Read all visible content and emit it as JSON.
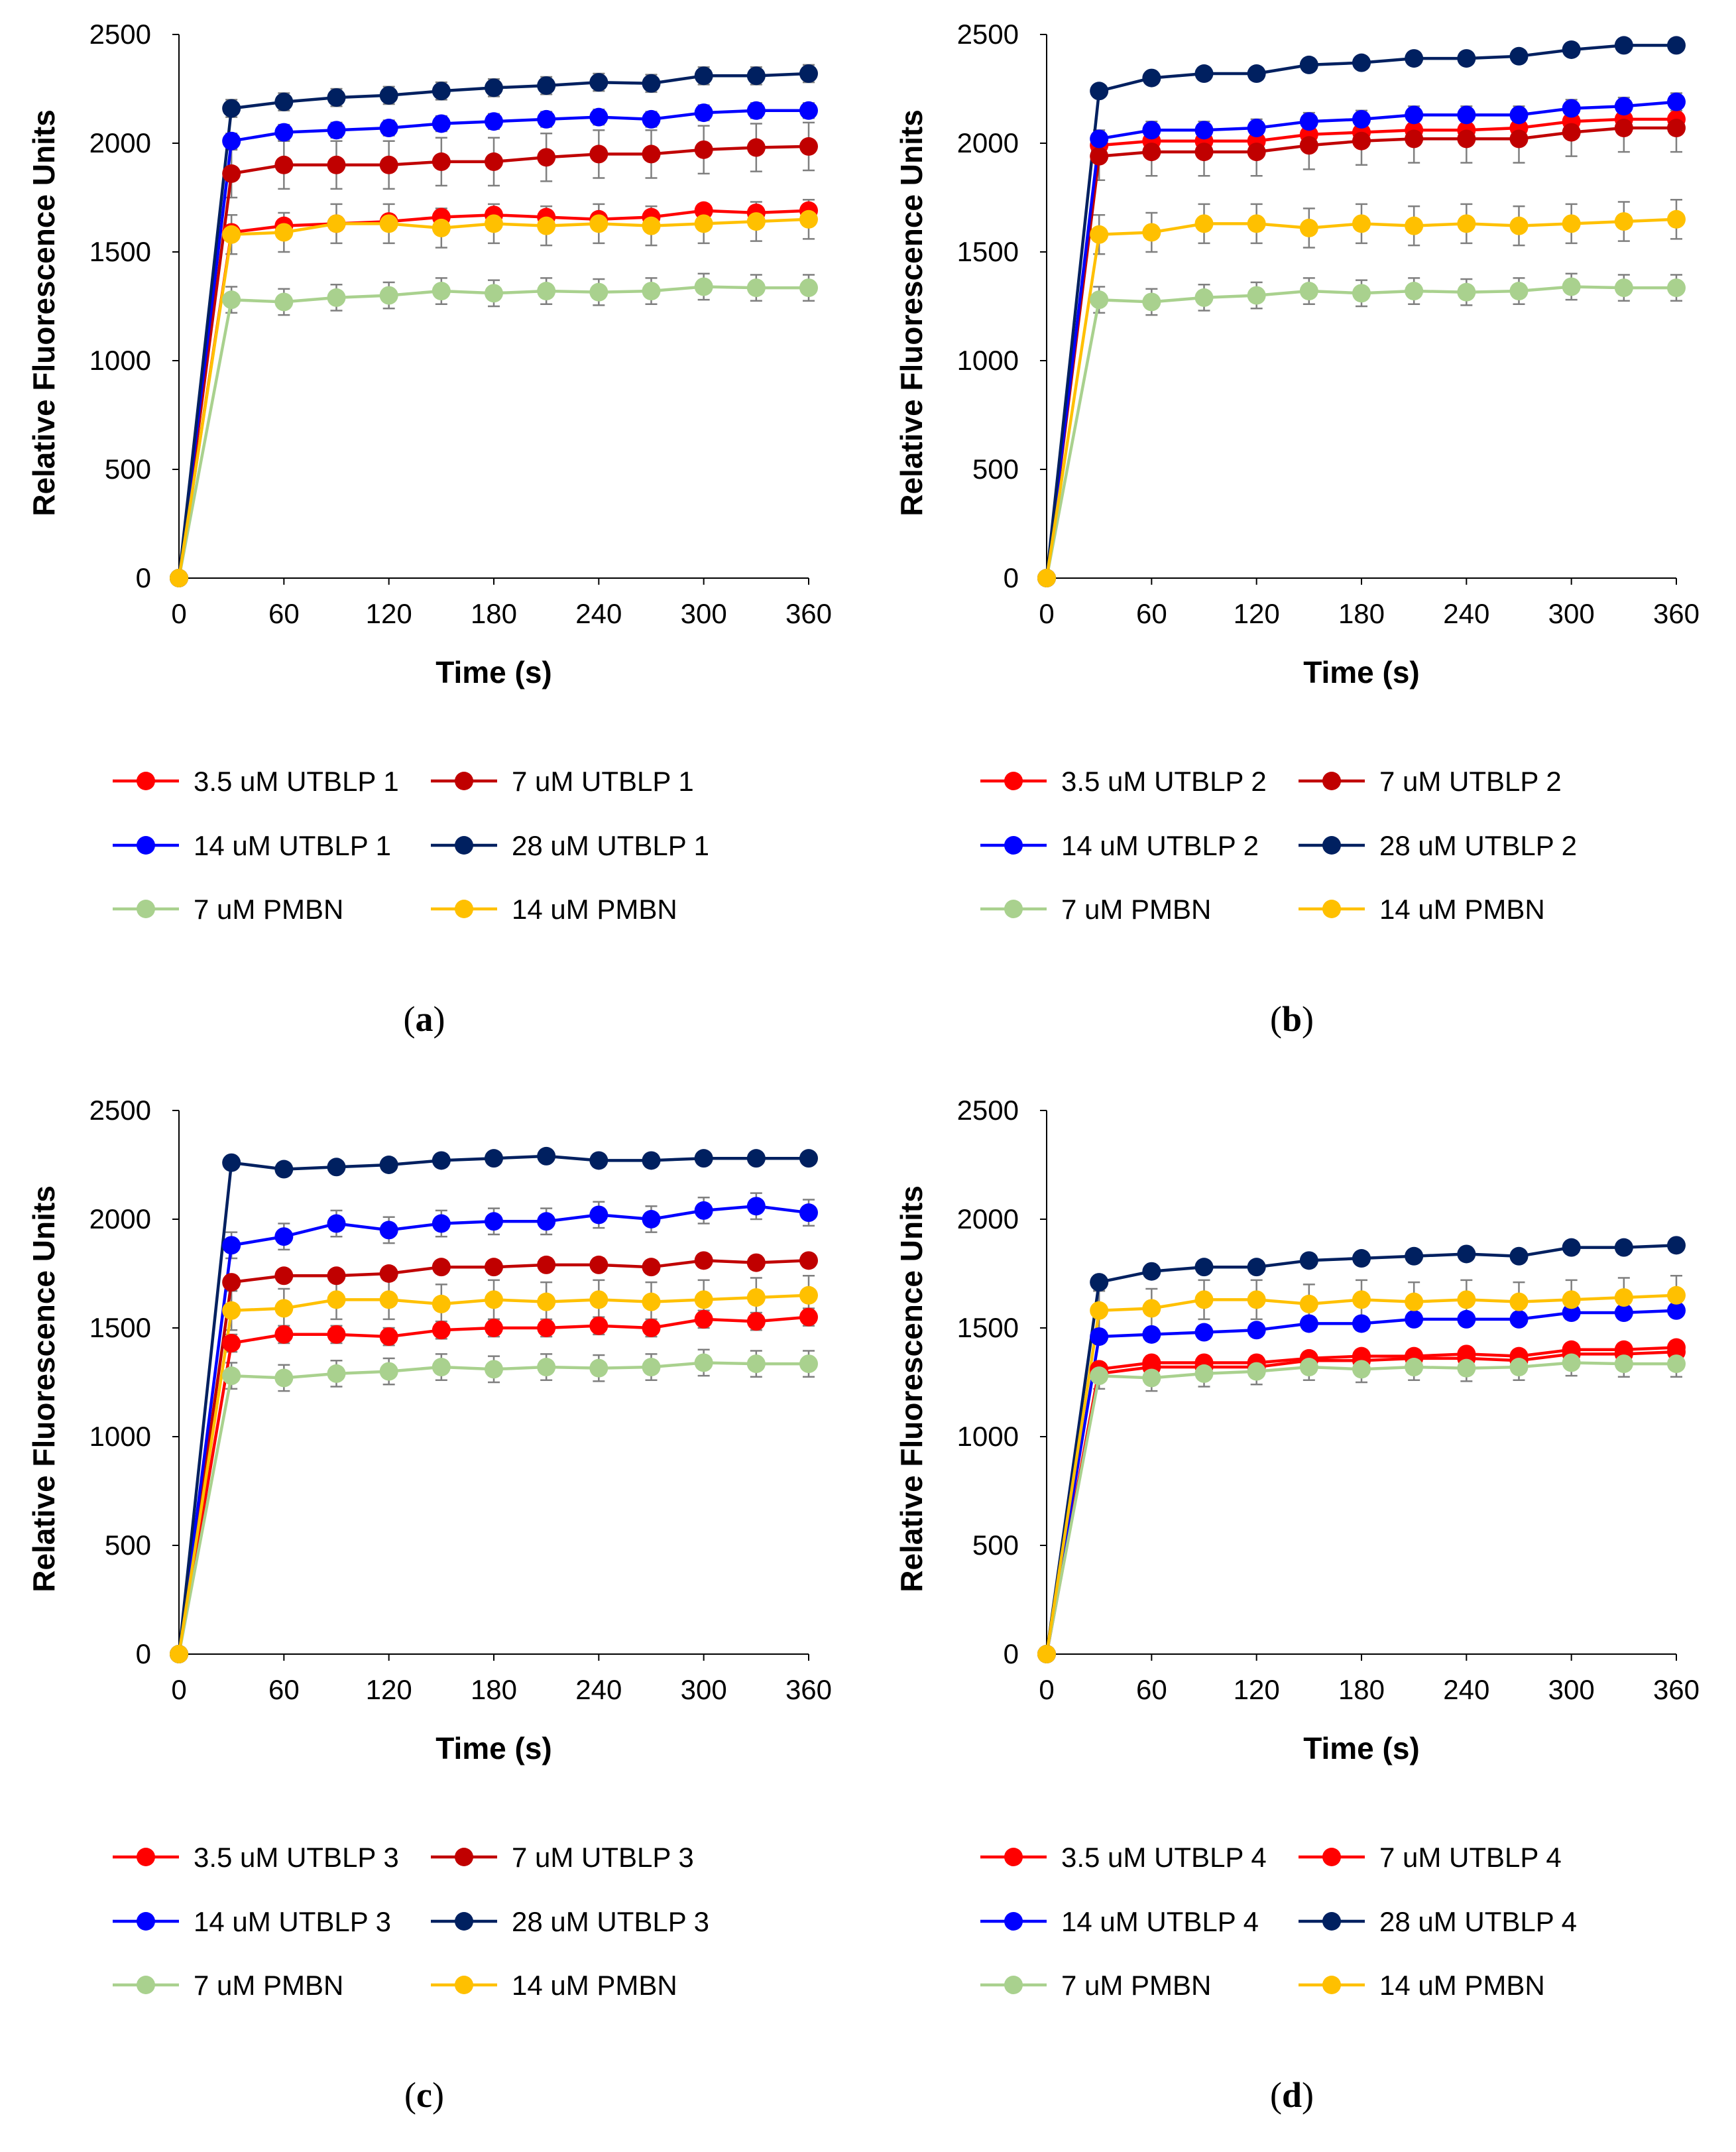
{
  "chart_data": [
    {
      "panel_label": "a",
      "type": "line",
      "xlabel": "Time (s)",
      "ylabel": "Relative Fluorescence Units",
      "xlim": [
        0,
        360
      ],
      "ylim": [
        0,
        2500
      ],
      "xticks": [
        0,
        60,
        120,
        180,
        240,
        300,
        360
      ],
      "yticks": [
        0,
        500,
        1000,
        1500,
        2000,
        2500
      ],
      "x": [
        0,
        30,
        60,
        90,
        120,
        150,
        180,
        210,
        240,
        270,
        300,
        330,
        360
      ],
      "series": [
        {
          "name": "3.5 uM UTBLP 1",
          "color": "#ff0000",
          "values": [
            0,
            1590,
            1620,
            1630,
            1640,
            1660,
            1670,
            1660,
            1650,
            1660,
            1690,
            1680,
            1690
          ],
          "err": 30
        },
        {
          "name": "7 uM UTBLP 1",
          "color": "#c00000",
          "values": [
            0,
            1860,
            1900,
            1900,
            1900,
            1915,
            1915,
            1935,
            1950,
            1950,
            1970,
            1980,
            1985
          ],
          "err": 110
        },
        {
          "name": "14 uM UTBLP 1",
          "color": "#0000ff",
          "values": [
            0,
            2010,
            2050,
            2060,
            2070,
            2090,
            2100,
            2110,
            2120,
            2110,
            2140,
            2150,
            2150
          ],
          "err": 35
        },
        {
          "name": "28 uM UTBLP 1",
          "color": "#002060",
          "values": [
            0,
            2160,
            2190,
            2210,
            2220,
            2240,
            2255,
            2265,
            2280,
            2275,
            2310,
            2310,
            2320
          ],
          "err": 40
        },
        {
          "name": "7 uM PMBN",
          "color": "#a9d18e",
          "values": [
            0,
            1280,
            1270,
            1290,
            1300,
            1320,
            1310,
            1320,
            1315,
            1320,
            1340,
            1335,
            1335
          ],
          "err": 60
        },
        {
          "name": "14 uM PMBN",
          "color": "#ffc000",
          "values": [
            0,
            1580,
            1590,
            1630,
            1630,
            1610,
            1630,
            1620,
            1630,
            1620,
            1630,
            1640,
            1650
          ],
          "err": 90
        }
      ]
    },
    {
      "panel_label": "b",
      "type": "line",
      "xlabel": "Time (s)",
      "ylabel": "Relative Fluorescence Units",
      "xlim": [
        0,
        360
      ],
      "ylim": [
        0,
        2500
      ],
      "xticks": [
        0,
        60,
        120,
        180,
        240,
        300,
        360
      ],
      "yticks": [
        0,
        500,
        1000,
        1500,
        2000,
        2500
      ],
      "x": [
        0,
        30,
        60,
        90,
        120,
        150,
        180,
        210,
        240,
        270,
        300,
        330,
        360
      ],
      "series": [
        {
          "name": "3.5 uM UTBLP 2",
          "color": "#ff0000",
          "values": [
            0,
            1990,
            2010,
            2010,
            2010,
            2040,
            2050,
            2060,
            2060,
            2070,
            2100,
            2110,
            2110
          ],
          "err": 40
        },
        {
          "name": "7 uM UTBLP 2",
          "color": "#c00000",
          "values": [
            0,
            1940,
            1960,
            1960,
            1960,
            1990,
            2010,
            2020,
            2020,
            2020,
            2050,
            2070,
            2070
          ],
          "err": 110
        },
        {
          "name": "14 uM UTBLP 2",
          "color": "#0000ff",
          "values": [
            0,
            2020,
            2060,
            2060,
            2070,
            2100,
            2110,
            2130,
            2130,
            2130,
            2160,
            2170,
            2190
          ],
          "err": 40
        },
        {
          "name": "28 uM UTBLP 2",
          "color": "#002060",
          "values": [
            0,
            2240,
            2300,
            2320,
            2320,
            2360,
            2370,
            2390,
            2390,
            2400,
            2430,
            2450,
            2450
          ],
          "err": 25
        },
        {
          "name": "7 uM PMBN",
          "color": "#a9d18e",
          "values": [
            0,
            1280,
            1270,
            1290,
            1300,
            1320,
            1310,
            1320,
            1315,
            1320,
            1340,
            1335,
            1335
          ],
          "err": 60
        },
        {
          "name": "14 uM PMBN",
          "color": "#ffc000",
          "values": [
            0,
            1580,
            1590,
            1630,
            1630,
            1610,
            1630,
            1620,
            1630,
            1620,
            1630,
            1640,
            1650
          ],
          "err": 90
        }
      ]
    },
    {
      "panel_label": "c",
      "type": "line",
      "xlabel": "Time (s)",
      "ylabel": "Relative Fluorescence Units",
      "xlim": [
        0,
        360
      ],
      "ylim": [
        0,
        2500
      ],
      "xticks": [
        0,
        60,
        120,
        180,
        240,
        300,
        360
      ],
      "yticks": [
        0,
        500,
        1000,
        1500,
        2000,
        2500
      ],
      "x": [
        0,
        30,
        60,
        90,
        120,
        150,
        180,
        210,
        240,
        270,
        300,
        330,
        360
      ],
      "series": [
        {
          "name": "3.5 uM UTBLP 3",
          "color": "#ff0000",
          "values": [
            0,
            1430,
            1470,
            1470,
            1460,
            1490,
            1500,
            1500,
            1510,
            1500,
            1540,
            1530,
            1550
          ],
          "err": 40
        },
        {
          "name": "7 uM UTBLP 3",
          "color": "#c00000",
          "values": [
            0,
            1710,
            1740,
            1740,
            1750,
            1780,
            1780,
            1790,
            1790,
            1780,
            1810,
            1800,
            1810
          ],
          "err": 30
        },
        {
          "name": "14 uM UTBLP 3",
          "color": "#0000ff",
          "values": [
            0,
            1880,
            1920,
            1980,
            1950,
            1980,
            1990,
            1990,
            2020,
            2000,
            2040,
            2060,
            2030
          ],
          "err": 60
        },
        {
          "name": "28 uM UTBLP 3",
          "color": "#002060",
          "values": [
            0,
            2260,
            2230,
            2240,
            2250,
            2270,
            2280,
            2290,
            2270,
            2270,
            2280,
            2280,
            2280
          ],
          "err": 20
        },
        {
          "name": "7 uM PMBN",
          "color": "#a9d18e",
          "values": [
            0,
            1280,
            1270,
            1290,
            1300,
            1320,
            1310,
            1320,
            1315,
            1320,
            1340,
            1335,
            1335
          ],
          "err": 60
        },
        {
          "name": "14 uM PMBN",
          "color": "#ffc000",
          "values": [
            0,
            1580,
            1590,
            1630,
            1630,
            1610,
            1630,
            1620,
            1630,
            1620,
            1630,
            1640,
            1650
          ],
          "err": 90
        }
      ]
    },
    {
      "panel_label": "d",
      "type": "line",
      "xlabel": "Time (s)",
      "ylabel": "Relative Fluorescence Units",
      "xlim": [
        0,
        360
      ],
      "ylim": [
        0,
        2500
      ],
      "xticks": [
        0,
        60,
        120,
        180,
        240,
        300,
        360
      ],
      "yticks": [
        0,
        500,
        1000,
        1500,
        2000,
        2500
      ],
      "x": [
        0,
        30,
        60,
        90,
        120,
        150,
        180,
        210,
        240,
        270,
        300,
        330,
        360
      ],
      "series": [
        {
          "name": "3.5 uM UTBLP 4",
          "color": "#ff0000",
          "values": [
            0,
            1310,
            1340,
            1340,
            1340,
            1360,
            1370,
            1370,
            1380,
            1370,
            1400,
            1400,
            1410
          ],
          "err": 30
        },
        {
          "name": "7 uM UTBLP 4",
          "color": "#ff0000",
          "values": [
            0,
            1290,
            1320,
            1320,
            1320,
            1350,
            1350,
            1360,
            1360,
            1350,
            1380,
            1380,
            1390
          ],
          "err": 30
        },
        {
          "name": "14 uM UTBLP 4",
          "color": "#0000ff",
          "values": [
            0,
            1460,
            1470,
            1480,
            1490,
            1520,
            1520,
            1540,
            1540,
            1540,
            1570,
            1570,
            1580
          ],
          "err": 30
        },
        {
          "name": "28 uM UTBLP 4",
          "color": "#002060",
          "values": [
            0,
            1710,
            1760,
            1780,
            1780,
            1810,
            1820,
            1830,
            1840,
            1830,
            1870,
            1870,
            1880
          ],
          "err": 30
        },
        {
          "name": "7 uM PMBN",
          "color": "#a9d18e",
          "values": [
            0,
            1280,
            1270,
            1290,
            1300,
            1320,
            1310,
            1320,
            1315,
            1320,
            1340,
            1335,
            1335
          ],
          "err": 60
        },
        {
          "name": "14 uM PMBN",
          "color": "#ffc000",
          "values": [
            0,
            1580,
            1590,
            1630,
            1630,
            1610,
            1630,
            1620,
            1630,
            1620,
            1630,
            1640,
            1650
          ],
          "err": 90
        }
      ]
    }
  ]
}
